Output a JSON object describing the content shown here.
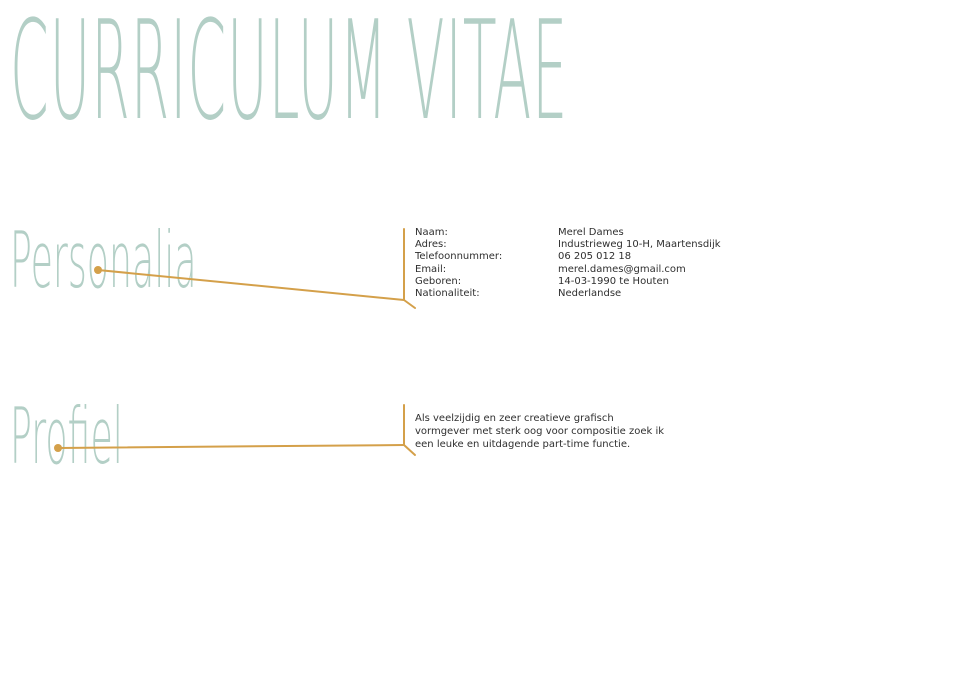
{
  "header": {
    "title": "CURRICULUM VITAE"
  },
  "colors": {
    "title_mint": "#b3cfc6",
    "accent_gold": "#d4a04a",
    "text": "#2f2f2f"
  },
  "personalia": {
    "heading": "Personalia",
    "rows": [
      {
        "label": "Naam:",
        "value": "Merel Dames"
      },
      {
        "label": "Adres:",
        "value": "Industrieweg 10-H, Maartensdijk"
      },
      {
        "label": "Telefoonnummer:",
        "value": "06 205 012 18"
      },
      {
        "label": "Email:",
        "value": "merel.dames@gmail.com"
      },
      {
        "label": "Geboren:",
        "value": "14-03-1990 te Houten"
      },
      {
        "label": "Nationaliteit:",
        "value": "Nederlandse"
      }
    ]
  },
  "profiel": {
    "heading": "Profiel",
    "text": "Als veelzijdig en zeer creatieve grafisch vormgever met sterk oog voor compositie zoek ik een leuke en uitdagende part-time functie."
  }
}
